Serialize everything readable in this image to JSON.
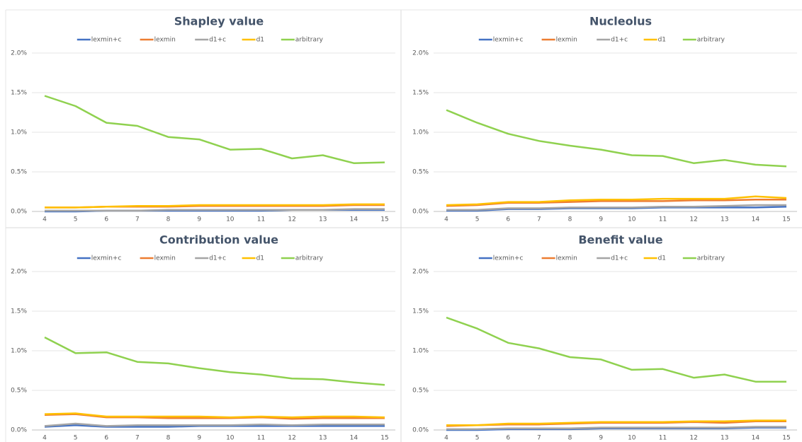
{
  "chart_data": [
    {
      "type": "line",
      "title": "Shapley value",
      "legend": "top",
      "x": [
        4,
        5,
        6,
        7,
        8,
        9,
        10,
        11,
        12,
        13,
        14,
        15
      ],
      "xlim": [
        4,
        15
      ],
      "xticks": [
        4,
        5,
        6,
        7,
        8,
        9,
        10,
        11,
        12,
        13,
        14,
        15
      ],
      "ylim": [
        0,
        2
      ],
      "yticks": [
        {
          "value": 0,
          "label": "0.0%"
        },
        {
          "value": 0.5,
          "label": "0.5%"
        },
        {
          "value": 1,
          "label": "1.0%"
        },
        {
          "value": 1.5,
          "label": "1.5%"
        },
        {
          "value": 2,
          "label": "2.0%"
        }
      ],
      "grid": true,
      "series": [
        {
          "name": "lexmin+c",
          "color": "#4472c4",
          "values": [
            0,
            0,
            0.01,
            0.01,
            0.01,
            0.01,
            0.01,
            0.01,
            0.02,
            0.02,
            0.02,
            0.02
          ]
        },
        {
          "name": "lexmin",
          "color": "#ed7d31",
          "values": [
            0.05,
            0.05,
            0.06,
            0.06,
            0.06,
            0.07,
            0.07,
            0.07,
            0.07,
            0.07,
            0.08,
            0.08
          ]
        },
        {
          "name": "d1+c",
          "color": "#a5a5a5",
          "values": [
            0.01,
            0.01,
            0.01,
            0.01,
            0.02,
            0.02,
            0.02,
            0.02,
            0.02,
            0.02,
            0.03,
            0.03
          ]
        },
        {
          "name": "d1",
          "color": "#ffc000",
          "values": [
            0.05,
            0.05,
            0.06,
            0.07,
            0.07,
            0.08,
            0.08,
            0.08,
            0.08,
            0.08,
            0.09,
            0.09
          ]
        },
        {
          "name": "arbitrary",
          "color": "#8fd14f",
          "values": [
            1.46,
            1.33,
            1.12,
            1.08,
            0.94,
            0.91,
            0.78,
            0.79,
            0.67,
            0.71,
            0.61,
            0.62
          ]
        }
      ]
    },
    {
      "type": "line",
      "title": "Nucleolus",
      "legend": "top",
      "x": [
        4,
        5,
        6,
        7,
        8,
        9,
        10,
        11,
        12,
        13,
        14,
        15
      ],
      "xlim": [
        4,
        15
      ],
      "xticks": [
        4,
        5,
        6,
        7,
        8,
        9,
        10,
        11,
        12,
        13,
        14,
        15
      ],
      "ylim": [
        0,
        2
      ],
      "yticks": [
        {
          "value": 0,
          "label": "0.0%"
        },
        {
          "value": 0.5,
          "label": "0.5%"
        },
        {
          "value": 1,
          "label": "1.0%"
        },
        {
          "value": 1.5,
          "label": "1.5%"
        },
        {
          "value": 2,
          "label": "2.0%"
        }
      ],
      "grid": true,
      "series": [
        {
          "name": "lexmin+c",
          "color": "#4472c4",
          "values": [
            0.01,
            0.01,
            0.03,
            0.03,
            0.04,
            0.04,
            0.04,
            0.05,
            0.05,
            0.05,
            0.05,
            0.06
          ]
        },
        {
          "name": "lexmin",
          "color": "#ed7d31",
          "values": [
            0.07,
            0.08,
            0.11,
            0.11,
            0.12,
            0.13,
            0.13,
            0.13,
            0.14,
            0.14,
            0.15,
            0.15
          ]
        },
        {
          "name": "d1+c",
          "color": "#a5a5a5",
          "values": [
            0.02,
            0.02,
            0.04,
            0.04,
            0.05,
            0.05,
            0.05,
            0.06,
            0.06,
            0.07,
            0.08,
            0.08
          ]
        },
        {
          "name": "d1",
          "color": "#ffc000",
          "values": [
            0.08,
            0.09,
            0.12,
            0.12,
            0.14,
            0.15,
            0.15,
            0.16,
            0.16,
            0.16,
            0.19,
            0.17
          ]
        },
        {
          "name": "arbitrary",
          "color": "#8fd14f",
          "values": [
            1.28,
            1.12,
            0.98,
            0.89,
            0.83,
            0.78,
            0.71,
            0.7,
            0.61,
            0.65,
            0.59,
            0.57
          ]
        }
      ]
    },
    {
      "type": "line",
      "title": "Contribution value",
      "legend": "top",
      "x": [
        4,
        5,
        6,
        7,
        8,
        9,
        10,
        11,
        12,
        13,
        14,
        15
      ],
      "xlim": [
        4,
        15
      ],
      "xticks": [
        4,
        5,
        6,
        7,
        8,
        9,
        10,
        11,
        12,
        13,
        14,
        15
      ],
      "ylim": [
        0,
        2
      ],
      "yticks": [
        {
          "value": 0,
          "label": "0.0%"
        },
        {
          "value": 0.5,
          "label": "0.5%"
        },
        {
          "value": 1,
          "label": "1.0%"
        },
        {
          "value": 1.5,
          "label": "1.5%"
        },
        {
          "value": 2,
          "label": "2.0%"
        }
      ],
      "grid": true,
      "series": [
        {
          "name": "lexmin+c",
          "color": "#4472c4",
          "values": [
            0.04,
            0.06,
            0.04,
            0.04,
            0.04,
            0.05,
            0.05,
            0.05,
            0.05,
            0.05,
            0.05,
            0.05
          ]
        },
        {
          "name": "lexmin",
          "color": "#ed7d31",
          "values": [
            0.19,
            0.2,
            0.16,
            0.16,
            0.15,
            0.15,
            0.15,
            0.16,
            0.14,
            0.15,
            0.15,
            0.15
          ]
        },
        {
          "name": "d1+c",
          "color": "#a5a5a5",
          "values": [
            0.05,
            0.08,
            0.05,
            0.06,
            0.06,
            0.06,
            0.06,
            0.07,
            0.06,
            0.07,
            0.07,
            0.07
          ]
        },
        {
          "name": "d1",
          "color": "#ffc000",
          "values": [
            0.2,
            0.21,
            0.17,
            0.17,
            0.17,
            0.17,
            0.16,
            0.17,
            0.16,
            0.17,
            0.17,
            0.16
          ]
        },
        {
          "name": "arbitrary",
          "color": "#8fd14f",
          "values": [
            1.17,
            0.97,
            0.98,
            0.86,
            0.84,
            0.78,
            0.73,
            0.7,
            0.65,
            0.64,
            0.6,
            0.57
          ]
        }
      ]
    },
    {
      "type": "line",
      "title": "Benefit value",
      "legend": "top",
      "x": [
        4,
        5,
        6,
        7,
        8,
        9,
        10,
        11,
        12,
        13,
        14,
        15
      ],
      "xlim": [
        4,
        15
      ],
      "xticks": [
        4,
        5,
        6,
        7,
        8,
        9,
        10,
        11,
        12,
        13,
        14,
        15
      ],
      "ylim": [
        0,
        2
      ],
      "yticks": [
        {
          "value": 0,
          "label": "0.0%"
        },
        {
          "value": 0.5,
          "label": "0.5%"
        },
        {
          "value": 1,
          "label": "1.0%"
        },
        {
          "value": 1.5,
          "label": "1.5%"
        },
        {
          "value": 2,
          "label": "2.0%"
        }
      ],
      "grid": true,
      "series": [
        {
          "name": "lexmin+c",
          "color": "#4472c4",
          "values": [
            0,
            0,
            0.01,
            0.01,
            0.01,
            0.02,
            0.02,
            0.02,
            0.02,
            0.02,
            0.03,
            0.03
          ]
        },
        {
          "name": "lexmin",
          "color": "#ed7d31",
          "values": [
            0.05,
            0.06,
            0.07,
            0.07,
            0.08,
            0.09,
            0.09,
            0.09,
            0.1,
            0.09,
            0.11,
            0.11
          ]
        },
        {
          "name": "d1+c",
          "color": "#a5a5a5",
          "values": [
            0.01,
            0.01,
            0.02,
            0.02,
            0.02,
            0.03,
            0.03,
            0.03,
            0.03,
            0.03,
            0.04,
            0.04
          ]
        },
        {
          "name": "d1",
          "color": "#ffc000",
          "values": [
            0.06,
            0.06,
            0.08,
            0.08,
            0.09,
            0.1,
            0.1,
            0.1,
            0.11,
            0.11,
            0.12,
            0.12
          ]
        },
        {
          "name": "arbitrary",
          "color": "#8fd14f",
          "values": [
            1.42,
            1.28,
            1.1,
            1.03,
            0.92,
            0.89,
            0.76,
            0.77,
            0.66,
            0.7,
            0.61,
            0.61
          ]
        }
      ]
    }
  ]
}
